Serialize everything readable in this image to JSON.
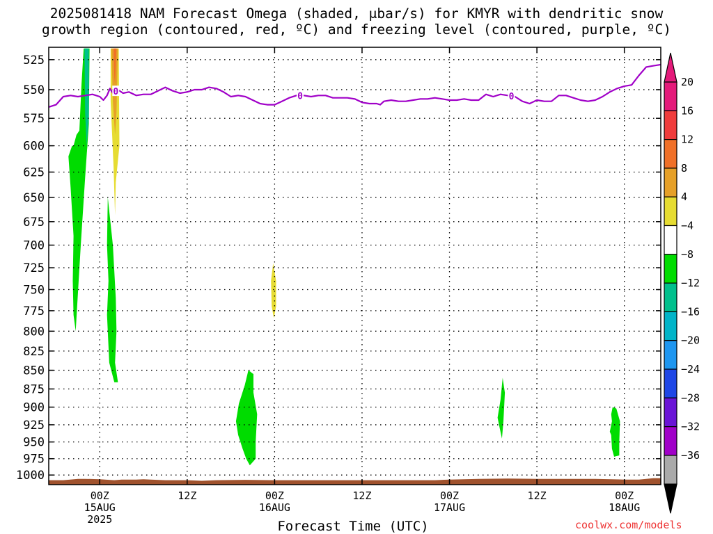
{
  "title_line1": "2025081418 NAM Forecast Omega (shaded, μbar/s) for KMYR with dendritic snow",
  "title_line2": "growth region (contoured, red, ºC) and freezing level (contoured, purple, ºC)",
  "credit": "coolwx.com/models",
  "chart_data": {
    "type": "heatmap",
    "xlabel": "Forecast Time (UTC)",
    "x_range_hours_from_15AUG00Z": [
      -7,
      77
    ],
    "y_range_mb": [
      515,
      1015
    ],
    "y_scale": "log-pressure, inverted",
    "grid": true,
    "y_ticks": [
      525,
      550,
      575,
      600,
      625,
      650,
      675,
      700,
      725,
      750,
      775,
      800,
      825,
      850,
      875,
      900,
      925,
      950,
      975,
      1000
    ],
    "x_ticks": [
      {
        "h": 0,
        "label": "00Z",
        "date": "15AUG",
        "year": "2025"
      },
      {
        "h": 12,
        "label": "12Z",
        "date": "",
        "year": ""
      },
      {
        "h": 24,
        "label": "00Z",
        "date": "16AUG",
        "year": ""
      },
      {
        "h": 36,
        "label": "12Z",
        "date": "",
        "year": ""
      },
      {
        "h": 48,
        "label": "00Z",
        "date": "17AUG",
        "year": ""
      },
      {
        "h": 60,
        "label": "12Z",
        "date": "",
        "year": ""
      },
      {
        "h": 72,
        "label": "00Z",
        "date": "18AUG",
        "year": ""
      }
    ],
    "colorbar": {
      "labels": [
        "20",
        "16",
        "12",
        "8",
        "4",
        "−4",
        "−8",
        "−12",
        "−16",
        "−20",
        "−24",
        "−28",
        "−32",
        "−36"
      ],
      "colors": [
        "#e41a7a",
        "#f03c3c",
        "#f07028",
        "#e6a028",
        "#e6dc32",
        "#ffffff",
        "#00dc00",
        "#00c08c",
        "#00b4c8",
        "#1e96f0",
        "#1e46e6",
        "#6a14d6",
        "#a000c8",
        "#aaaaaa"
      ],
      "top_arrow_color": "#e41a7a",
      "bottom_arrow_color": "#000000"
    },
    "freezing_level": {
      "color": "#a000c8",
      "label": "0",
      "label_hours": [
        2.2,
        27.5,
        56.5
      ],
      "points": [
        [
          -7,
          565
        ],
        [
          -6,
          563
        ],
        [
          -5,
          556
        ],
        [
          -4,
          555
        ],
        [
          -3,
          556
        ],
        [
          -2,
          555
        ],
        [
          -1,
          554
        ],
        [
          0,
          556
        ],
        [
          0.5,
          559
        ],
        [
          1,
          555
        ],
        [
          1.4,
          549
        ],
        [
          1.8,
          553
        ],
        [
          2.5,
          550
        ],
        [
          3.2,
          553
        ],
        [
          4,
          552
        ],
        [
          5,
          555
        ],
        [
          6,
          554
        ],
        [
          7,
          554
        ],
        [
          9,
          548
        ],
        [
          10,
          551
        ],
        [
          11,
          553
        ],
        [
          12,
          552
        ],
        [
          13,
          550
        ],
        [
          14,
          550
        ],
        [
          15,
          548
        ],
        [
          16,
          549
        ],
        [
          17,
          552
        ],
        [
          18,
          556
        ],
        [
          19,
          555
        ],
        [
          20,
          556
        ],
        [
          21,
          559
        ],
        [
          22,
          562
        ],
        [
          23,
          563
        ],
        [
          24,
          563
        ],
        [
          25,
          560
        ],
        [
          26,
          557
        ],
        [
          27,
          555
        ],
        [
          28,
          555
        ],
        [
          29,
          556
        ],
        [
          30,
          555
        ],
        [
          31,
          555
        ],
        [
          32,
          557
        ],
        [
          33,
          557
        ],
        [
          34,
          557
        ],
        [
          35,
          558
        ],
        [
          36,
          561
        ],
        [
          37,
          562
        ],
        [
          38,
          562
        ],
        [
          38.5,
          563
        ],
        [
          39,
          560
        ],
        [
          40,
          559
        ],
        [
          41,
          560
        ],
        [
          42,
          560
        ],
        [
          43,
          559
        ],
        [
          44,
          558
        ],
        [
          45,
          558
        ],
        [
          46,
          557
        ],
        [
          47,
          558
        ],
        [
          48,
          559
        ],
        [
          49,
          559
        ],
        [
          50,
          558
        ],
        [
          51,
          559
        ],
        [
          52,
          559
        ],
        [
          53,
          554
        ],
        [
          54,
          556
        ],
        [
          55,
          554
        ],
        [
          56,
          555
        ],
        [
          57,
          556
        ],
        [
          58,
          560
        ],
        [
          59,
          562
        ],
        [
          60,
          559
        ],
        [
          61,
          560
        ],
        [
          62,
          560
        ],
        [
          63,
          555
        ],
        [
          64,
          555
        ],
        [
          65,
          557
        ],
        [
          66,
          559
        ],
        [
          67,
          560
        ],
        [
          68,
          559
        ],
        [
          69,
          556
        ],
        [
          70,
          552
        ],
        [
          71,
          549
        ],
        [
          72,
          547
        ],
        [
          73,
          546
        ],
        [
          74,
          538
        ],
        [
          75,
          531
        ],
        [
          76,
          530
        ],
        [
          77,
          529
        ]
      ]
    },
    "omega_regions": [
      {
        "level": 4,
        "color": "#e6dc32",
        "points": [
          [
            1.5,
            516
          ],
          [
            2.6,
            516
          ],
          [
            2.7,
            600
          ],
          [
            2.2,
            635
          ],
          [
            2.1,
            668
          ],
          [
            1.9,
            620
          ],
          [
            1.5,
            560
          ]
        ]
      },
      {
        "level": 8,
        "color": "#e6a028",
        "points": [
          [
            1.6,
            516
          ],
          [
            2.5,
            516
          ],
          [
            2.3,
            570
          ],
          [
            2.1,
            590
          ],
          [
            1.8,
            560
          ]
        ]
      },
      {
        "level": 12,
        "color": "#f07028",
        "points": [
          [
            1.9,
            516
          ],
          [
            2.3,
            516
          ],
          [
            2.1,
            545
          ],
          [
            2.0,
            540
          ]
        ]
      },
      {
        "level": -4,
        "color": "#00dc00",
        "points": [
          [
            -3.6,
            600
          ],
          [
            -3.2,
            590
          ],
          [
            -2.8,
            586
          ],
          [
            -2.5,
            545
          ],
          [
            -2.2,
            516
          ],
          [
            -1.4,
            516
          ],
          [
            -1.5,
            580
          ],
          [
            -2,
            630
          ],
          [
            -2.6,
            700
          ],
          [
            -3.3,
            800
          ],
          [
            -3.6,
            780
          ],
          [
            -3.7,
            740
          ],
          [
            -3.6,
            690
          ],
          [
            -4,
            640
          ],
          [
            -4.3,
            610
          ],
          [
            -3.8,
            600
          ]
        ]
      },
      {
        "level": -4,
        "color": "#00dc00",
        "points": [
          [
            1.1,
            650
          ],
          [
            1.8,
            700
          ],
          [
            2.2,
            760
          ],
          [
            2.3,
            800
          ],
          [
            2.1,
            840
          ],
          [
            2.5,
            866
          ],
          [
            2.0,
            866
          ],
          [
            1.3,
            840
          ],
          [
            1.0,
            780
          ],
          [
            1.2,
            740
          ],
          [
            1.0,
            700
          ]
        ]
      },
      {
        "level": -4,
        "color": "#00dc00",
        "points": [
          [
            -2.1,
            516
          ],
          [
            -1.7,
            516
          ],
          [
            -1.7,
            600
          ],
          [
            -2,
            620
          ],
          [
            -2.2,
            560
          ]
        ]
      },
      {
        "level": -8,
        "color": "#00c08c",
        "points": [
          [
            -2.1,
            516
          ],
          [
            -1.5,
            516
          ],
          [
            -1.5,
            575
          ],
          [
            -1.8,
            600
          ],
          [
            -2.0,
            570
          ]
        ]
      },
      {
        "level": 4,
        "color": "#e6dc32",
        "points": [
          [
            23.8,
            720
          ],
          [
            24.2,
            740
          ],
          [
            24.2,
            770
          ],
          [
            23.9,
            784
          ],
          [
            23.6,
            770
          ],
          [
            23.5,
            740
          ]
        ]
      },
      {
        "level": -4,
        "color": "#00dc00",
        "points": [
          [
            20.4,
            850
          ],
          [
            21.1,
            855
          ],
          [
            21.1,
            880
          ],
          [
            21.6,
            910
          ],
          [
            21.4,
            950
          ],
          [
            21.4,
            975
          ],
          [
            20.6,
            985
          ],
          [
            20.1,
            975
          ],
          [
            19.6,
            960
          ],
          [
            19,
            940
          ],
          [
            18.7,
            920
          ],
          [
            19.1,
            895
          ],
          [
            19.9,
            870
          ]
        ]
      },
      {
        "level": -4,
        "color": "#00dc00",
        "points": [
          [
            55.3,
            860
          ],
          [
            55.6,
            880
          ],
          [
            55.4,
            920
          ],
          [
            55.2,
            945
          ],
          [
            54.9,
            930
          ],
          [
            54.6,
            915
          ],
          [
            55,
            890
          ]
        ]
      },
      {
        "level": -4,
        "color": "#00dc00",
        "points": [
          [
            70.4,
            900
          ],
          [
            70.9,
            902
          ],
          [
            71.4,
            920
          ],
          [
            71.3,
            950
          ],
          [
            71.3,
            970
          ],
          [
            70.6,
            972
          ],
          [
            70.3,
            960
          ],
          [
            70.2,
            940
          ],
          [
            70,
            935
          ],
          [
            70.3,
            920
          ],
          [
            70.2,
            910
          ]
        ]
      }
    ],
    "terrain": {
      "color": "#a0522d",
      "surface": [
        [
          -7,
          1008
        ],
        [
          -5,
          1008
        ],
        [
          -3,
          1006
        ],
        [
          -2,
          1006
        ],
        [
          0,
          1006.5
        ],
        [
          2,
          1008
        ],
        [
          3,
          1007
        ],
        [
          5,
          1007
        ],
        [
          6,
          1006.5
        ],
        [
          7,
          1007
        ],
        [
          9,
          1008
        ],
        [
          12,
          1008
        ],
        [
          14,
          1009
        ],
        [
          16,
          1008
        ],
        [
          20,
          1007.5
        ],
        [
          24,
          1008
        ],
        [
          30,
          1008
        ],
        [
          36,
          1008
        ],
        [
          40,
          1008
        ],
        [
          44,
          1008
        ],
        [
          46,
          1008
        ],
        [
          48,
          1007
        ],
        [
          52,
          1006
        ],
        [
          56,
          1005.5
        ],
        [
          60,
          1006
        ],
        [
          64,
          1006
        ],
        [
          68,
          1006
        ],
        [
          72,
          1007
        ],
        [
          74,
          1007
        ],
        [
          76,
          1005
        ],
        [
          77,
          1005
        ]
      ]
    }
  }
}
